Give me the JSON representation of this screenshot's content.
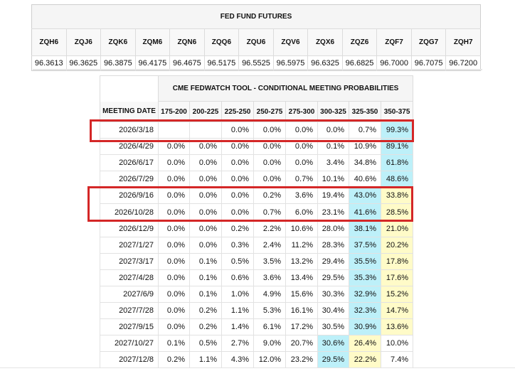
{
  "futures": {
    "title": "FED FUND FUTURES",
    "codes": [
      "ZQH6",
      "ZQJ6",
      "ZQK6",
      "ZQM6",
      "ZQN6",
      "ZQQ6",
      "ZQU6",
      "ZQV6",
      "ZQX6",
      "ZQZ6",
      "ZQF7",
      "ZQG7",
      "ZQH7"
    ],
    "prices": [
      "96.3613",
      "96.3625",
      "96.3875",
      "96.4175",
      "96.4675",
      "96.5175",
      "96.5525",
      "96.5975",
      "96.6325",
      "96.6825",
      "96.7000",
      "96.7075",
      "96.7200"
    ]
  },
  "chart_data": {
    "type": "table",
    "title": "CME FEDWATCH TOOL - CONDITIONAL MEETING PROBABILITIES",
    "row_header": "MEETING DATE",
    "columns": [
      "175-200",
      "200-225",
      "225-250",
      "250-275",
      "275-300",
      "300-325",
      "325-350",
      "350-375"
    ],
    "rows": [
      {
        "date": "2026/3/18",
        "values": [
          "",
          "",
          "0.0%",
          "0.0%",
          "0.0%",
          "0.0%",
          "0.7%",
          "99.3%"
        ],
        "highlight": {
          "blue": 7,
          "yellow": -1
        }
      },
      {
        "date": "2026/4/29",
        "values": [
          "0.0%",
          "0.0%",
          "0.0%",
          "0.0%",
          "0.0%",
          "0.1%",
          "10.9%",
          "89.1%"
        ],
        "highlight": {
          "blue": 7,
          "yellow": -1
        }
      },
      {
        "date": "2026/6/17",
        "values": [
          "0.0%",
          "0.0%",
          "0.0%",
          "0.0%",
          "0.0%",
          "3.4%",
          "34.8%",
          "61.8%"
        ],
        "highlight": {
          "blue": 7,
          "yellow": -1
        }
      },
      {
        "date": "2026/7/29",
        "values": [
          "0.0%",
          "0.0%",
          "0.0%",
          "0.0%",
          "0.7%",
          "10.1%",
          "40.6%",
          "48.6%"
        ],
        "highlight": {
          "blue": 7,
          "yellow": -1
        }
      },
      {
        "date": "2026/9/16",
        "values": [
          "0.0%",
          "0.0%",
          "0.0%",
          "0.2%",
          "3.6%",
          "19.4%",
          "43.0%",
          "33.8%"
        ],
        "highlight": {
          "blue": 6,
          "yellow": 7
        }
      },
      {
        "date": "2026/10/28",
        "values": [
          "0.0%",
          "0.0%",
          "0.0%",
          "0.7%",
          "6.0%",
          "23.1%",
          "41.6%",
          "28.5%"
        ],
        "highlight": {
          "blue": 6,
          "yellow": 7
        }
      },
      {
        "date": "2026/12/9",
        "values": [
          "0.0%",
          "0.0%",
          "0.2%",
          "2.2%",
          "10.6%",
          "28.0%",
          "38.1%",
          "21.0%"
        ],
        "highlight": {
          "blue": 6,
          "yellow": 7
        }
      },
      {
        "date": "2027/1/27",
        "values": [
          "0.0%",
          "0.0%",
          "0.3%",
          "2.4%",
          "11.2%",
          "28.3%",
          "37.5%",
          "20.2%"
        ],
        "highlight": {
          "blue": 6,
          "yellow": 7
        }
      },
      {
        "date": "2027/3/17",
        "values": [
          "0.0%",
          "0.1%",
          "0.5%",
          "3.5%",
          "13.2%",
          "29.4%",
          "35.5%",
          "17.8%"
        ],
        "highlight": {
          "blue": 6,
          "yellow": 7
        }
      },
      {
        "date": "2027/4/28",
        "values": [
          "0.0%",
          "0.1%",
          "0.6%",
          "3.6%",
          "13.4%",
          "29.5%",
          "35.3%",
          "17.6%"
        ],
        "highlight": {
          "blue": 6,
          "yellow": 7
        }
      },
      {
        "date": "2027/6/9",
        "values": [
          "0.0%",
          "0.1%",
          "1.0%",
          "4.9%",
          "15.6%",
          "30.3%",
          "32.9%",
          "15.2%"
        ],
        "highlight": {
          "blue": 6,
          "yellow": 7
        }
      },
      {
        "date": "2027/7/28",
        "values": [
          "0.0%",
          "0.2%",
          "1.1%",
          "5.3%",
          "16.1%",
          "30.4%",
          "32.3%",
          "14.7%"
        ],
        "highlight": {
          "blue": 6,
          "yellow": 7
        }
      },
      {
        "date": "2027/9/15",
        "values": [
          "0.0%",
          "0.2%",
          "1.4%",
          "6.1%",
          "17.2%",
          "30.5%",
          "30.9%",
          "13.6%"
        ],
        "highlight": {
          "blue": 6,
          "yellow": 7
        }
      },
      {
        "date": "2027/10/27",
        "values": [
          "0.1%",
          "0.5%",
          "2.7%",
          "9.0%",
          "20.7%",
          "30.6%",
          "26.4%",
          "10.0%"
        ],
        "highlight": {
          "blue": 5,
          "yellow": 6
        }
      },
      {
        "date": "2027/12/8",
        "values": [
          "0.2%",
          "1.1%",
          "4.3%",
          "12.0%",
          "23.2%",
          "29.5%",
          "22.2%",
          "7.4%"
        ],
        "highlight": {
          "blue": 5,
          "yellow": 6
        }
      }
    ],
    "colors": {
      "blue_highlight": "#bdf0f9",
      "yellow_highlight": "#fffbc8",
      "annotation": "#d42727"
    },
    "annotations": [
      "2026/3/18",
      "2026/9/16",
      "2026/10/28"
    ]
  }
}
